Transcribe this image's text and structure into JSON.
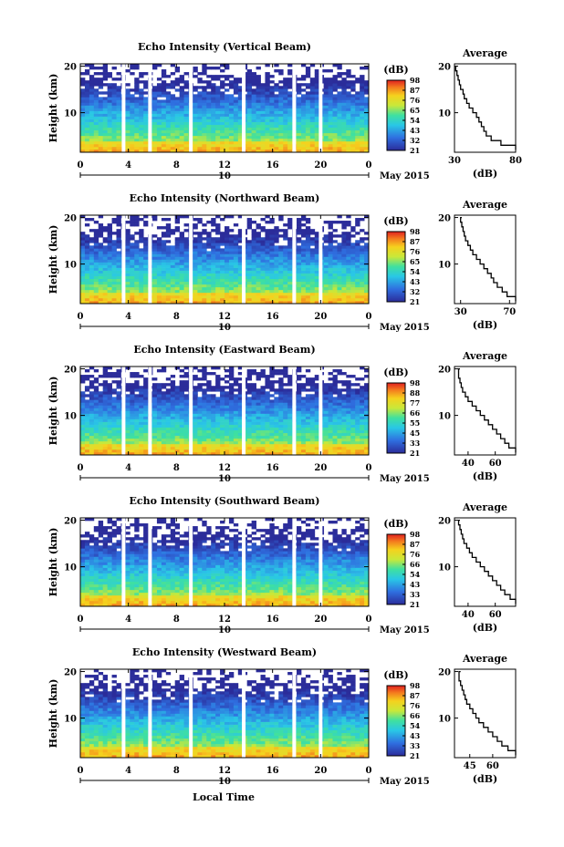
{
  "figure": {
    "xlabel_bottom": "Local Time",
    "date_label": "May 2015",
    "day_label": "10"
  },
  "chart_data": [
    {
      "type": "heatmap",
      "title": "Echo Intensity (Vertical Beam)",
      "ylabel": "Height (km)",
      "xlim": [
        0,
        24
      ],
      "ylim": [
        1.5,
        20.5
      ],
      "x_ticks": [
        0,
        4,
        8,
        12,
        16,
        20,
        24
      ],
      "y_ticks": [
        10,
        20
      ],
      "colorbar": {
        "label": "(dB)",
        "ticks": [
          21,
          32,
          43,
          54,
          65,
          76,
          87,
          98
        ]
      },
      "gaps_hours": [
        3.6,
        5.8,
        9.2,
        13.6,
        17.8,
        20.0
      ],
      "profile": {
        "title": "Average",
        "xlabel": "(dB)",
        "xlim": [
          30,
          80
        ],
        "xticks": [
          30,
          80
        ],
        "height": [
          2,
          3,
          4,
          5,
          6,
          7,
          8,
          9,
          10,
          11,
          12,
          13,
          14,
          15,
          16,
          17,
          18,
          19,
          20
        ],
        "db": [
          80,
          68,
          60,
          56,
          54,
          52,
          50,
          48,
          45,
          42,
          40,
          38,
          37,
          35,
          34,
          33,
          32,
          31,
          32
        ]
      }
    },
    {
      "type": "heatmap",
      "title": "Echo Intensity (Northward Beam)",
      "ylabel": "Height (km)",
      "xlim": [
        0,
        24
      ],
      "ylim": [
        1.5,
        20.5
      ],
      "x_ticks": [
        0,
        4,
        8,
        12,
        16,
        20,
        24
      ],
      "y_ticks": [
        10,
        20
      ],
      "colorbar": {
        "label": "(dB)",
        "ticks": [
          21,
          32,
          43,
          54,
          65,
          76,
          87,
          98
        ]
      },
      "gaps_hours": [
        3.6,
        5.8,
        9.2,
        13.6,
        17.8,
        20.0
      ],
      "profile": {
        "title": "Average",
        "xlabel": "(dB)",
        "xlim": [
          25,
          75
        ],
        "xticks": [
          30,
          70
        ],
        "height": [
          2,
          3,
          4,
          5,
          6,
          7,
          8,
          9,
          10,
          11,
          12,
          13,
          14,
          15,
          16,
          17,
          18,
          19,
          20
        ],
        "db": [
          75,
          68,
          64,
          60,
          57,
          55,
          52,
          49,
          46,
          43,
          40,
          38,
          36,
          34,
          33,
          32,
          31,
          30,
          31
        ]
      }
    },
    {
      "type": "heatmap",
      "title": "Echo Intensity (Eastward Beam)",
      "ylabel": "Height (km)",
      "xlim": [
        0,
        24
      ],
      "ylim": [
        1.5,
        20.5
      ],
      "x_ticks": [
        0,
        4,
        8,
        12,
        16,
        20,
        24
      ],
      "y_ticks": [
        10,
        20
      ],
      "colorbar": {
        "label": "(dB)",
        "ticks": [
          21,
          33,
          45,
          55,
          66,
          77,
          88,
          98
        ]
      },
      "gaps_hours": [
        3.6,
        5.8,
        9.2,
        13.6,
        17.8,
        20.0
      ],
      "profile": {
        "title": "Average",
        "xlabel": "(dB)",
        "xlim": [
          30,
          75
        ],
        "xticks": [
          40,
          60
        ],
        "height": [
          2,
          3,
          4,
          5,
          6,
          7,
          8,
          9,
          10,
          11,
          12,
          13,
          14,
          15,
          16,
          17,
          18,
          19,
          20
        ],
        "db": [
          75,
          70,
          67,
          64,
          61,
          58,
          55,
          52,
          49,
          46,
          43,
          40,
          38,
          36,
          35,
          34,
          33,
          33,
          34
        ]
      }
    },
    {
      "type": "heatmap",
      "title": "Echo Intensity (Southward Beam)",
      "ylabel": "Height (km)",
      "xlim": [
        0,
        24
      ],
      "ylim": [
        1.5,
        20.5
      ],
      "x_ticks": [
        0,
        4,
        8,
        12,
        16,
        20,
        24
      ],
      "y_ticks": [
        10,
        20
      ],
      "colorbar": {
        "label": "(dB)",
        "ticks": [
          21,
          33,
          43,
          54,
          66,
          76,
          87,
          98
        ]
      },
      "gaps_hours": [
        3.6,
        5.8,
        9.2,
        13.6,
        17.8,
        20.0
      ],
      "profile": {
        "title": "Average",
        "xlabel": "(dB)",
        "xlim": [
          30,
          75
        ],
        "xticks": [
          40,
          60
        ],
        "height": [
          2,
          3,
          4,
          5,
          6,
          7,
          8,
          9,
          10,
          11,
          12,
          13,
          14,
          15,
          16,
          17,
          18,
          19,
          20
        ],
        "db": [
          75,
          71,
          67,
          64,
          61,
          58,
          55,
          52,
          49,
          46,
          43,
          41,
          39,
          37,
          36,
          35,
          34,
          33,
          34
        ]
      }
    },
    {
      "type": "heatmap",
      "title": "Echo Intensity (Westward Beam)",
      "ylabel": "Height (km)",
      "xlim": [
        0,
        24
      ],
      "ylim": [
        1.5,
        20.5
      ],
      "x_ticks": [
        0,
        4,
        8,
        12,
        16,
        20,
        24
      ],
      "y_ticks": [
        10,
        20
      ],
      "colorbar": {
        "label": "(dB)",
        "ticks": [
          21,
          33,
          43,
          54,
          66,
          76,
          87,
          98
        ]
      },
      "gaps_hours": [
        3.6,
        5.8,
        9.2,
        13.6,
        17.8,
        20.0
      ],
      "profile": {
        "title": "Average",
        "xlabel": "(dB)",
        "xlim": [
          35,
          75
        ],
        "xticks": [
          45,
          60
        ],
        "height": [
          2,
          3,
          4,
          5,
          6,
          7,
          8,
          9,
          10,
          11,
          12,
          13,
          14,
          15,
          16,
          17,
          18,
          19,
          20
        ],
        "db": [
          75,
          70,
          66,
          63,
          60,
          57,
          54,
          51,
          49,
          47,
          45,
          43,
          42,
          41,
          40,
          39,
          38,
          38,
          39
        ]
      }
    }
  ]
}
